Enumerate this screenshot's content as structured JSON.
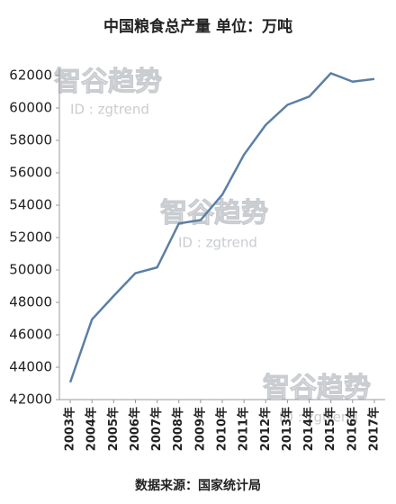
{
  "chart_data": {
    "type": "line",
    "title": "中国粮食总产量 单位：万吨",
    "source": "数据来源：国家统计局",
    "annotations": [
      "智谷趋势",
      "ID : zgtrend",
      "智谷趋势",
      "ID : zgtrend",
      "智谷趋势",
      "ID : zgtrend"
    ],
    "categories": [
      "2003年",
      "2004年",
      "2005年",
      "2006年",
      "2007年",
      "2008年",
      "2009年",
      "2010年",
      "2011年",
      "2012年",
      "2013年",
      "2014年",
      "2015年",
      "2016年",
      "2017年"
    ],
    "values": [
      43070,
      46947,
      48402,
      49804,
      50160,
      52871,
      53082,
      54648,
      57121,
      58958,
      60194,
      60703,
      62144,
      61625,
      61791
    ],
    "color": "#5b7fa6",
    "ylim": [
      42000,
      62000
    ],
    "yticks": [
      42000,
      44000,
      46000,
      48000,
      50000,
      52000,
      54000,
      56000,
      58000,
      60000,
      62000
    ],
    "grid": false
  }
}
